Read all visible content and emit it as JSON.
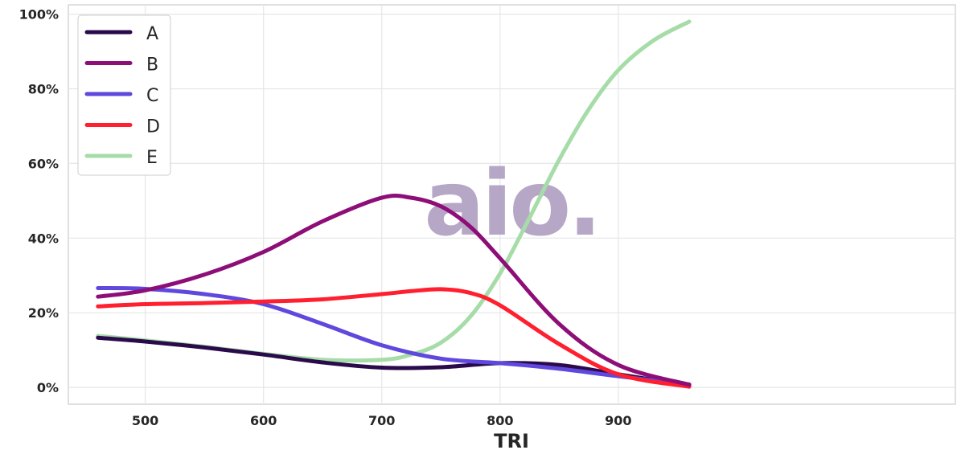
{
  "chart_data": {
    "type": "line",
    "xlabel": "TRI",
    "ylabel": "",
    "xlim": [
      435,
      1185
    ],
    "ylim": [
      -4.5,
      102.5
    ],
    "x_ticks": [
      500,
      600,
      700,
      800,
      900
    ],
    "y_ticks": [
      0,
      20,
      40,
      60,
      80,
      100
    ],
    "y_tick_labels": [
      "0%",
      "20%",
      "40%",
      "60%",
      "80%",
      "100%"
    ],
    "grid": true,
    "legend_position": "top-left",
    "watermark": "aio.",
    "series": [
      {
        "name": "A",
        "color": "#2a0a4a",
        "x": [
          460,
          500,
          550,
          600,
          650,
          700,
          750,
          800,
          850,
          900,
          960
        ],
        "y": [
          13.3,
          12.3,
          10.7,
          8.8,
          6.7,
          5.3,
          5.4,
          6.5,
          6.0,
          3.5,
          0.5
        ]
      },
      {
        "name": "B",
        "color": "#8e0e78",
        "x": [
          460,
          500,
          550,
          600,
          650,
          700,
          725,
          750,
          775,
          800,
          850,
          900,
          960
        ],
        "y": [
          24.3,
          26.0,
          30.2,
          36.3,
          44.5,
          50.8,
          50.8,
          48.5,
          43.0,
          34.6,
          17.0,
          6.0,
          0.7
        ]
      },
      {
        "name": "C",
        "color": "#5e48de",
        "x": [
          460,
          500,
          550,
          600,
          650,
          700,
          750,
          800,
          850,
          900,
          960
        ],
        "y": [
          26.6,
          26.4,
          25.0,
          22.3,
          17.0,
          11.3,
          7.7,
          6.5,
          5.0,
          3.0,
          0.8
        ]
      },
      {
        "name": "D",
        "color": "#ff1f2f",
        "x": [
          460,
          500,
          550,
          600,
          650,
          700,
          725,
          750,
          775,
          800,
          850,
          900,
          960
        ],
        "y": [
          21.7,
          22.3,
          22.6,
          23.0,
          23.6,
          25.0,
          25.8,
          26.3,
          25.3,
          22.0,
          11.6,
          3.5,
          0.2
        ]
      },
      {
        "name": "E",
        "color": "#a6dca8",
        "x": [
          460,
          500,
          550,
          600,
          650,
          700,
          725,
          750,
          775,
          800,
          825,
          850,
          875,
          900,
          930,
          960
        ],
        "y": [
          13.8,
          12.6,
          10.9,
          9.0,
          7.4,
          7.4,
          8.8,
          12.0,
          19.0,
          30.5,
          45.5,
          61.0,
          74.5,
          85.0,
          93.0,
          98.0
        ]
      }
    ]
  }
}
